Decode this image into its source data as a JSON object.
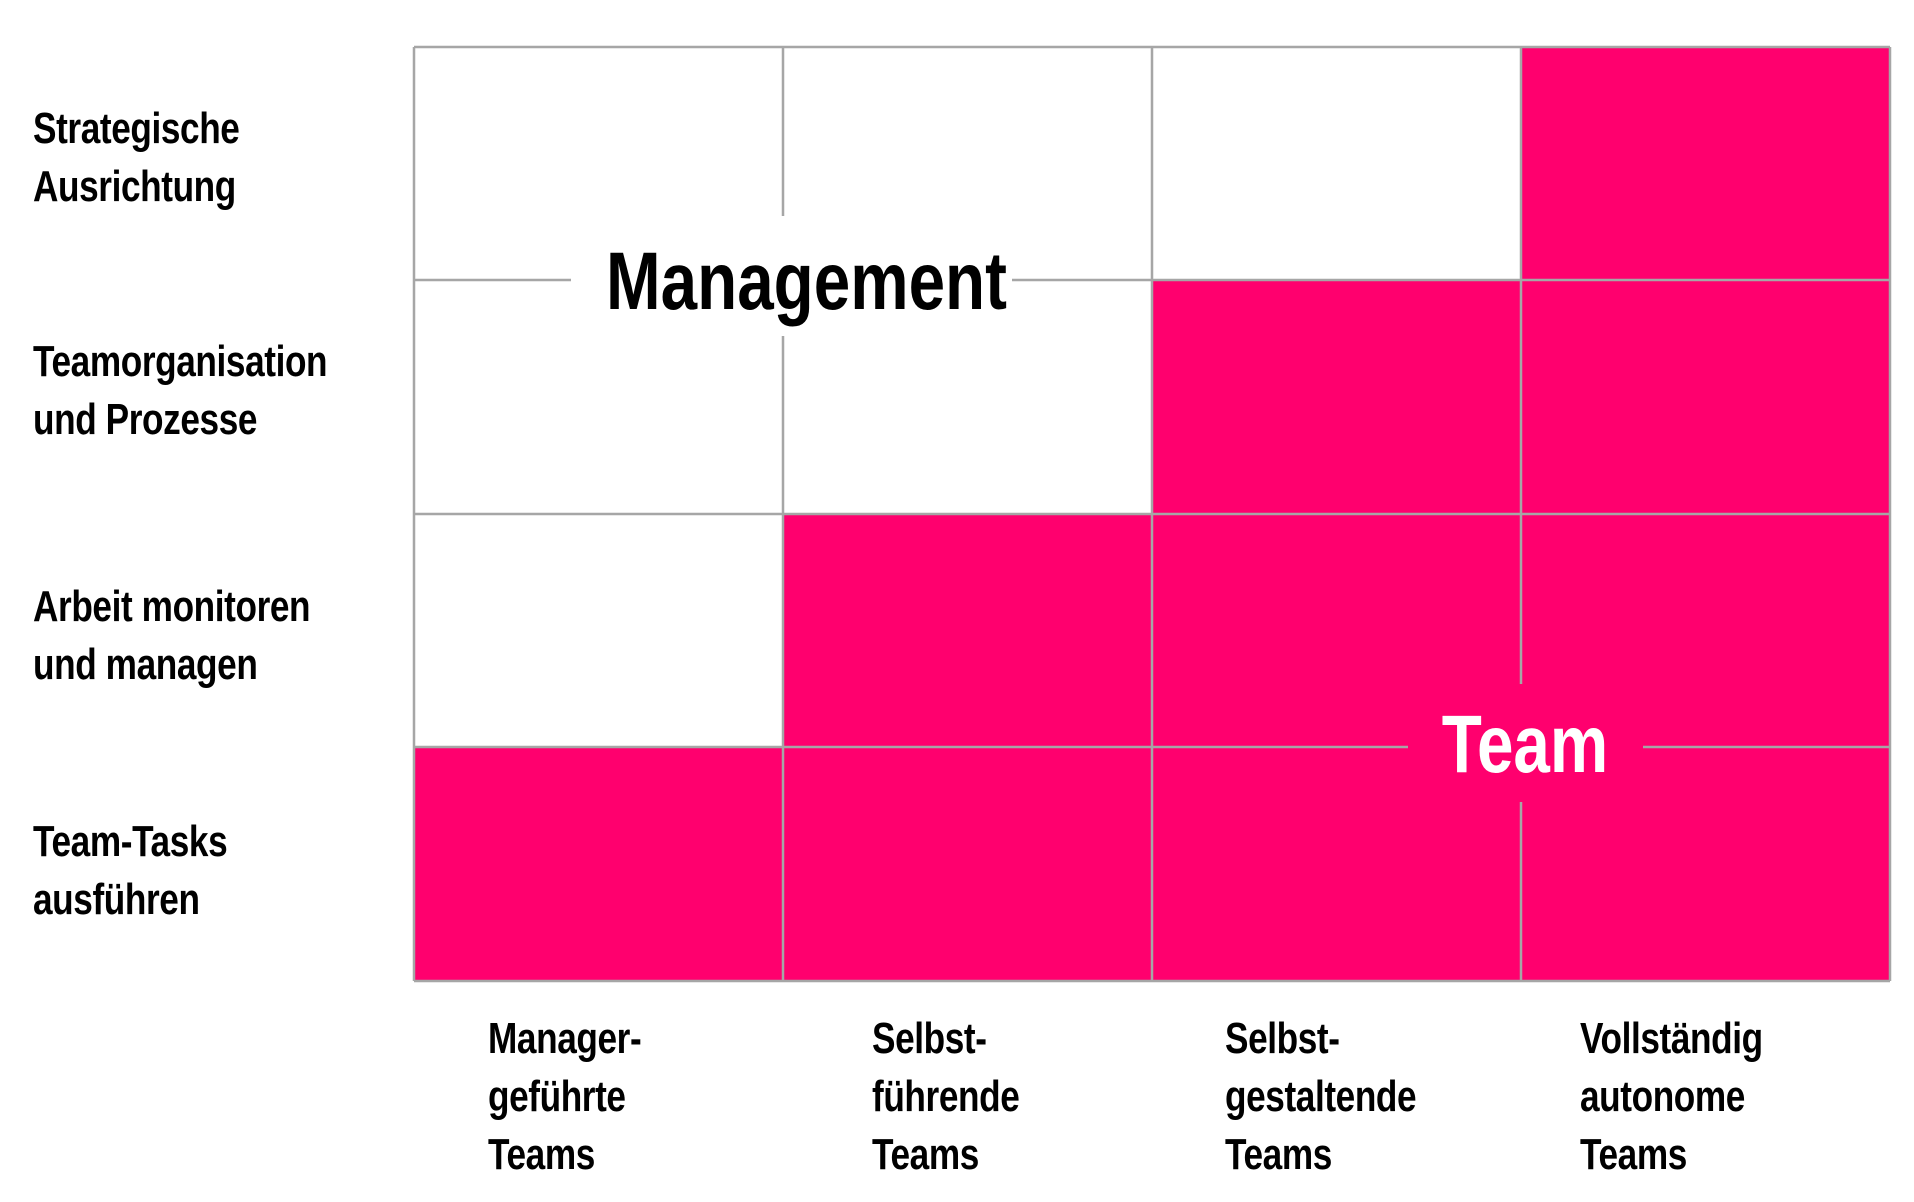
{
  "row_labels": [
    "Strategische\nAusrichtung",
    "Teamorganisation\nund Prozesse",
    "Arbeit monitoren\nund managen",
    "Team-Tasks\nausführen"
  ],
  "column_labels": [
    "Manager-\ngeführte\nTeams",
    "Selbst-\nführende\nTeams",
    "Selbst-\ngestaltende\nTeams",
    "Vollständig\nautonome\nTeams"
  ],
  "region_labels": {
    "management": "Management",
    "team": "Team"
  },
  "team_responsibility": [
    [
      false,
      false,
      false,
      true
    ],
    [
      false,
      false,
      true,
      true
    ],
    [
      false,
      true,
      true,
      true
    ],
    [
      true,
      true,
      true,
      true
    ]
  ],
  "colors": {
    "team_fill": "#FF006E",
    "management_fill": "#FFFFFF",
    "grid": "#A6A6A6",
    "text": "#000000",
    "team_label": "#FFFFFF"
  }
}
